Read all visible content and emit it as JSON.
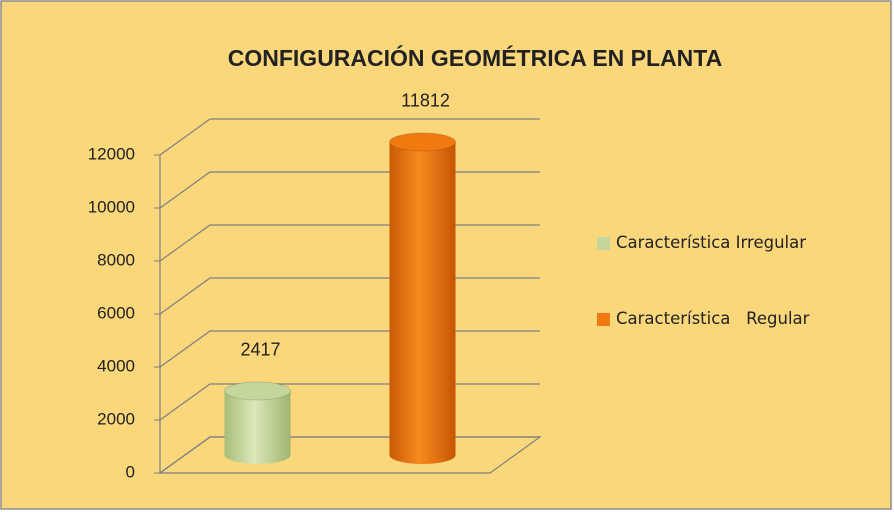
{
  "chart_data": {
    "type": "bar3d",
    "title": "CONFIGURACIÓN GEOMÉTRICA EN PLANTA",
    "series": [
      {
        "name": "Característica Irregular",
        "color": "#c3d69b",
        "values": [
          2417
        ]
      },
      {
        "name": "Característica   Regular",
        "color": "#f07a10",
        "values": [
          11812
        ]
      }
    ],
    "ylim": [
      0,
      12000
    ],
    "yticks": [
      0,
      2000,
      4000,
      6000,
      8000,
      10000,
      12000
    ],
    "grid": true,
    "legend": "right"
  }
}
